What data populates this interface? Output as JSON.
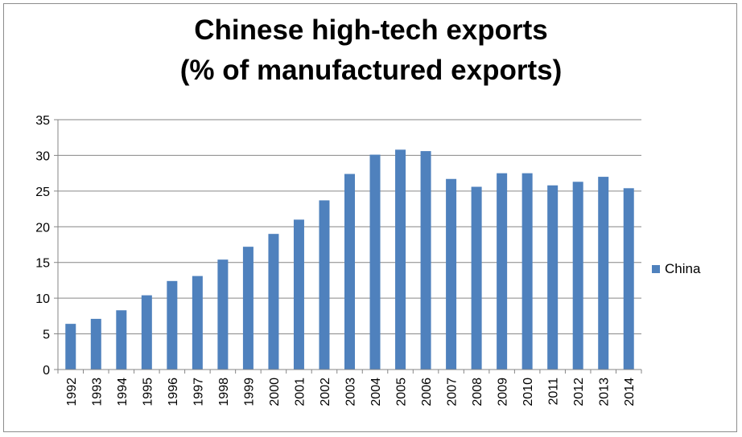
{
  "colors": {
    "series": "#4f81bd",
    "gridline": "#868686",
    "axis": "#868686"
  },
  "chart_data": {
    "type": "bar",
    "title_lines": [
      "Chinese high-tech exports",
      "(% of manufactured exports)"
    ],
    "xlabel": "",
    "ylabel": "",
    "categories": [
      "1992",
      "1993",
      "1994",
      "1995",
      "1996",
      "1997",
      "1998",
      "1999",
      "2000",
      "2001",
      "2002",
      "2003",
      "2004",
      "2005",
      "2006",
      "2007",
      "2008",
      "2009",
      "2010",
      "2011",
      "2012",
      "2013",
      "2014"
    ],
    "series": [
      {
        "name": "China",
        "values": [
          6.4,
          7.1,
          8.3,
          10.4,
          12.4,
          13.1,
          15.4,
          17.2,
          19.0,
          21.0,
          23.7,
          27.4,
          30.1,
          30.8,
          30.6,
          26.7,
          25.6,
          27.5,
          27.5,
          25.8,
          26.3,
          27.0,
          25.4
        ]
      }
    ],
    "ylim": [
      0,
      35
    ],
    "yticks": [
      0,
      5,
      10,
      15,
      20,
      25,
      30,
      35
    ],
    "grid": true,
    "legend_position": "right"
  }
}
